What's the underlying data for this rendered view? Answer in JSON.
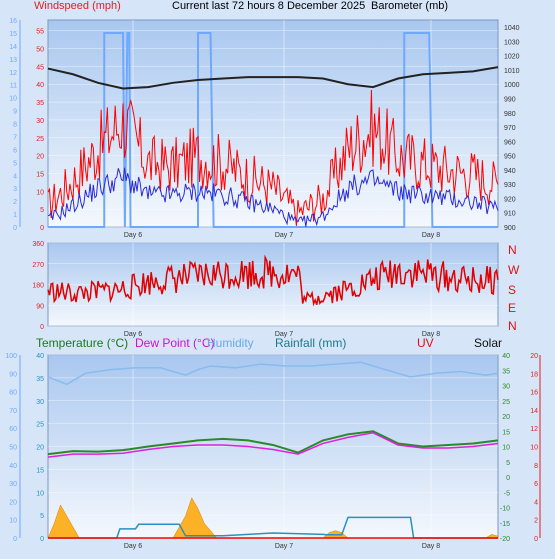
{
  "header": {
    "windspeed_label": "Windspeed (mph)",
    "title": "Current last 72 hours 8 December 2025",
    "barometer_label": "Barometer (mb)"
  },
  "bottom_header": {
    "temperature": "Temperature (°C)",
    "dew_point": "Dew Point (°C)",
    "humidity": "Humidity",
    "rainfall": "Rainfall (mm)",
    "uv": "UV",
    "solar": "Solar"
  },
  "colors": {
    "wind_gust": "#ff0000",
    "wind_avg": "#2a2ad8",
    "barometer": "#222222",
    "solar_clock": "#6ea8ff",
    "direction": "#e00000",
    "temperature": "#2a8a2a",
    "dew_point": "#e020e0",
    "humidity": "#88bbee",
    "rainfall": "#2a90c0",
    "solar": "#ffa500",
    "uv": "#ff0000"
  },
  "chart_data": [
    {
      "type": "line",
      "title": "Current last 72 hours 8 December 2025",
      "x_ticks": [
        "Day 6",
        "Day 7",
        "Day 8"
      ],
      "left_axis": {
        "label": "Windspeed (mph)",
        "ylim": [
          0,
          58
        ],
        "ticks": [
          0,
          5,
          10,
          15,
          20,
          25,
          30,
          35,
          40,
          45,
          50,
          55
        ]
      },
      "far_left_axis": {
        "ylim": [
          0,
          16
        ],
        "ticks": [
          0,
          1,
          2,
          3,
          4,
          5,
          6,
          7,
          8,
          9,
          10,
          11,
          12,
          13,
          14,
          15,
          16
        ]
      },
      "right_axis": {
        "label": "Barometer (mb)",
        "ylim": [
          900,
          1045
        ],
        "ticks": [
          900,
          910,
          920,
          930,
          940,
          950,
          960,
          970,
          980,
          990,
          1000,
          1010,
          1020,
          1030,
          1040
        ]
      },
      "series": [
        {
          "name": "Windspeed (mph)",
          "axis": "left",
          "x": [
            0,
            4,
            8,
            12,
            16,
            20,
            24,
            28,
            32,
            36,
            40,
            44,
            48,
            52,
            56,
            60,
            64,
            68,
            72
          ],
          "values": [
            6,
            13,
            22,
            30,
            18,
            17,
            20,
            18,
            14,
            11,
            4,
            8,
            22,
            28,
            20,
            18,
            16,
            15,
            12
          ]
        },
        {
          "axis": "left",
          "x": [
            0,
            4,
            8,
            12,
            16,
            20,
            24,
            28,
            32,
            36,
            40,
            44,
            48,
            52,
            56,
            60,
            64,
            68,
            72
          ],
          "values": [
            2,
            6,
            11,
            14,
            9,
            9,
            10,
            9,
            7,
            5,
            1,
            3,
            11,
            13,
            10,
            9,
            8,
            7,
            5
          ]
        },
        {
          "name": "Barometer (mb)",
          "axis": "right",
          "x": [
            0,
            4,
            8,
            12,
            16,
            20,
            24,
            28,
            32,
            36,
            40,
            44,
            48,
            52,
            56,
            60,
            64,
            68,
            72
          ],
          "values": [
            1011,
            1007,
            1001,
            997,
            998,
            1001,
            1003,
            1004,
            1005,
            1005,
            1005,
            1004,
            1000,
            998,
            1004,
            1007,
            1008,
            1009,
            1012
          ]
        }
      ]
    },
    {
      "type": "line",
      "x_ticks": [
        "Day 6",
        "Day 7",
        "Day 8"
      ],
      "ylim": [
        0,
        360
      ],
      "yticks": [
        0,
        90,
        180,
        270,
        360
      ],
      "compass": [
        "N",
        "W",
        "S",
        "E",
        "N"
      ],
      "series": [
        {
          "x": [
            0,
            4,
            8,
            12,
            16,
            20,
            24,
            28,
            32,
            36,
            40,
            41,
            44,
            48,
            52,
            56,
            60,
            64,
            68,
            72
          ],
          "values": [
            155,
            140,
            150,
            160,
            190,
            205,
            215,
            228,
            230,
            232,
            225,
            108,
            135,
            160,
            200,
            240,
            230,
            210,
            195,
            200
          ]
        }
      ]
    },
    {
      "type": "line",
      "x_ticks": [
        "Day 6",
        "Day 7",
        "Day 8"
      ],
      "left_axis": {
        "ylim": [
          0,
          100
        ],
        "ticks": [
          0,
          10,
          20,
          30,
          40,
          50,
          60,
          70,
          80,
          90,
          100
        ]
      },
      "left_axis_2": {
        "ylim": [
          0,
          40
        ],
        "ticks": [
          0,
          5,
          10,
          15,
          20,
          25,
          30,
          35,
          40
        ]
      },
      "right_axis": {
        "ylim": [
          -20,
          40
        ],
        "ticks": [
          -20,
          -15,
          -10,
          -5,
          0,
          5,
          10,
          15,
          20,
          25,
          30,
          35,
          40
        ]
      },
      "right_axis_2": {
        "ylim": [
          0,
          20
        ],
        "ticks": [
          0,
          2,
          4,
          6,
          8,
          10,
          12,
          14,
          16,
          18,
          20
        ]
      },
      "series": [
        {
          "name": "Temperature (°C)",
          "axis": "right",
          "x": [
            0,
            4,
            8,
            12,
            16,
            20,
            24,
            28,
            32,
            36,
            40,
            44,
            48,
            52,
            56,
            60,
            64,
            68,
            72
          ],
          "values": [
            7.5,
            8.5,
            8.3,
            8.8,
            10,
            11,
            12,
            12.5,
            12,
            10.5,
            8,
            12,
            14,
            15,
            11,
            10,
            10.5,
            11,
            12
          ]
        },
        {
          "name": "Dew Point (°C)",
          "axis": "right",
          "x": [
            0,
            4,
            8,
            12,
            16,
            20,
            24,
            28,
            32,
            36,
            40,
            44,
            48,
            52,
            56,
            60,
            64,
            68,
            72
          ],
          "values": [
            6.5,
            7.5,
            7.5,
            7.8,
            9,
            10,
            10.5,
            10.5,
            10,
            9,
            7.5,
            11,
            13,
            14.5,
            10.5,
            9.5,
            9.5,
            10,
            11
          ]
        },
        {
          "name": "Humidity",
          "axis": "left",
          "x": [
            0,
            3,
            6,
            10,
            14,
            18,
            22,
            24,
            26,
            30,
            34,
            38,
            42,
            46,
            50,
            54,
            58,
            62,
            66,
            70,
            72
          ],
          "values": [
            88,
            84,
            90,
            92,
            93,
            93,
            89,
            92,
            94,
            93,
            95,
            94,
            94,
            95,
            96,
            92,
            88,
            90,
            91,
            89,
            90
          ]
        },
        {
          "name": "Rainfall (mm)",
          "axis": "left_axis_2",
          "x": [
            0,
            11,
            11.5,
            14,
            14.5,
            21,
            22,
            28,
            36,
            44,
            44.5,
            47,
            48,
            58,
            58.5,
            72
          ],
          "values": [
            0,
            0,
            2,
            2,
            3,
            3,
            0.5,
            0.5,
            1.1,
            0.8,
            0.7,
            0.7,
            4.5,
            4.5,
            0,
            0
          ]
        },
        {
          "name": "Solar",
          "axis": "left",
          "x": [
            0,
            1,
            2,
            3,
            4,
            5,
            20,
            21,
            22,
            23,
            24,
            25,
            26,
            27,
            44,
            45,
            46,
            47,
            48,
            70,
            71,
            72
          ],
          "values": [
            0,
            8,
            18,
            12,
            6,
            0,
            0,
            6,
            12,
            22,
            16,
            8,
            4,
            0,
            0,
            3,
            4,
            3,
            0,
            0,
            2,
            1
          ]
        },
        {
          "name": "UV",
          "axis": "right_axis_2",
          "x": [
            0,
            72
          ],
          "values": [
            0,
            0
          ]
        }
      ]
    }
  ]
}
